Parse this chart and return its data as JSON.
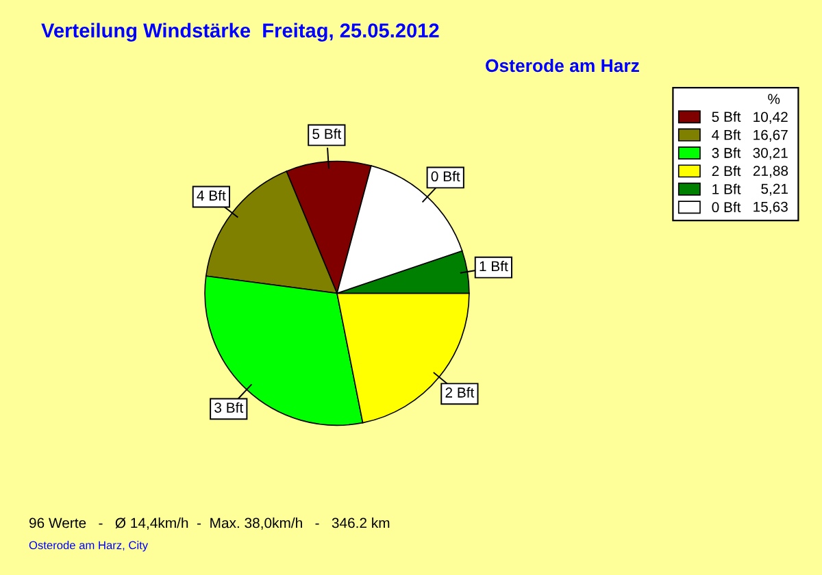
{
  "chart_data": {
    "type": "pie",
    "title": "Verteilung Windstärke  Freitag, 25.05.2012",
    "subtitle": "Osterode am Harz",
    "legend_title": "%",
    "categories": [
      "5 Bft",
      "4 Bft",
      "3 Bft",
      "2 Bft",
      "1 Bft",
      "0 Bft"
    ],
    "values": [
      10.42,
      16.67,
      30.21,
      21.88,
      5.21,
      15.63
    ],
    "value_labels": [
      "10,42",
      "16,67",
      "30,21",
      "21,88",
      " 5,21",
      "15,63"
    ],
    "colors": [
      "#800000",
      "#808000",
      "#00ff00",
      "#ffff00",
      "#008000",
      "#ffffff"
    ],
    "legend": "right",
    "annotations": [
      "96 Werte   -   Ø 14,4km/h  -  Max. 38,0km/h   -   346.2 km",
      "Osterode am Harz, City"
    ]
  }
}
